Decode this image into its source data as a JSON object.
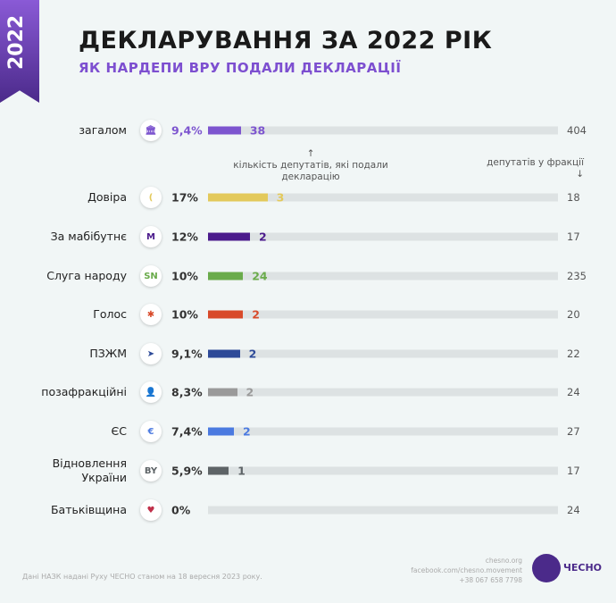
{
  "ribbon": "2022",
  "title": "ДЕКЛАРУВАННЯ ЗА 2022 РІК",
  "subtitle": "ЯК НАРДЕПИ ВРУ ПОДАЛИ ДЕКЛАРАЦІЇ",
  "notes": {
    "filed": "↑\nкількість депутатів, які подали декларацію",
    "total": "депутатів у фракції\n↓"
  },
  "chart_data": {
    "type": "bar",
    "categories": [
      "загалом",
      "Довіра",
      "За мабібутнє",
      "Слуга народу",
      "Голос",
      "ПЗЖМ",
      "позафракційні",
      "ЄС",
      "Відновлення України",
      "Батьківщина"
    ],
    "percent_labels": [
      "9,4%",
      "17%",
      "12%",
      "10%",
      "10%",
      "9,1%",
      "8,3%",
      "7,4%",
      "5,9%",
      "0%"
    ],
    "percent": [
      9.4,
      17,
      12,
      10,
      10,
      9.1,
      8.3,
      7.4,
      5.9,
      0
    ],
    "filed": [
      38,
      3,
      2,
      24,
      2,
      2,
      2,
      2,
      1,
      null
    ],
    "totals": [
      404,
      18,
      17,
      235,
      20,
      22,
      24,
      27,
      17,
      24
    ],
    "colors": [
      "#7d55cf",
      "#e3c95b",
      "#4b1b8c",
      "#6aab4b",
      "#d84a2a",
      "#2d4a98",
      "#9a9a9a",
      "#4b7ae0",
      "#5e6467",
      "#c0304a"
    ],
    "icons": [
      "parliament-icon",
      "dovira-logo-icon",
      "za-maybutnie-logo-icon",
      "sluha-narodu-logo-icon",
      "holos-logo-icon",
      "pzzhm-logo-icon",
      "person-icon",
      "yes-logo-icon",
      "vidnovlennia-logo-icon",
      "heart-icon"
    ],
    "icon_text": [
      "🏛",
      "(",
      "M",
      "SN",
      "✱",
      "➤",
      "👤",
      "€",
      "BY",
      "♥"
    ]
  },
  "footer": {
    "source": "Дані НАЗК надані Руху ЧЕСНО станом на 18 вересня 2023 року.",
    "site": "chesno.org",
    "facebook": "facebook.com/chesno.movement",
    "phone": "+38 067 658 7798",
    "logo": "ЧЕСНО"
  }
}
